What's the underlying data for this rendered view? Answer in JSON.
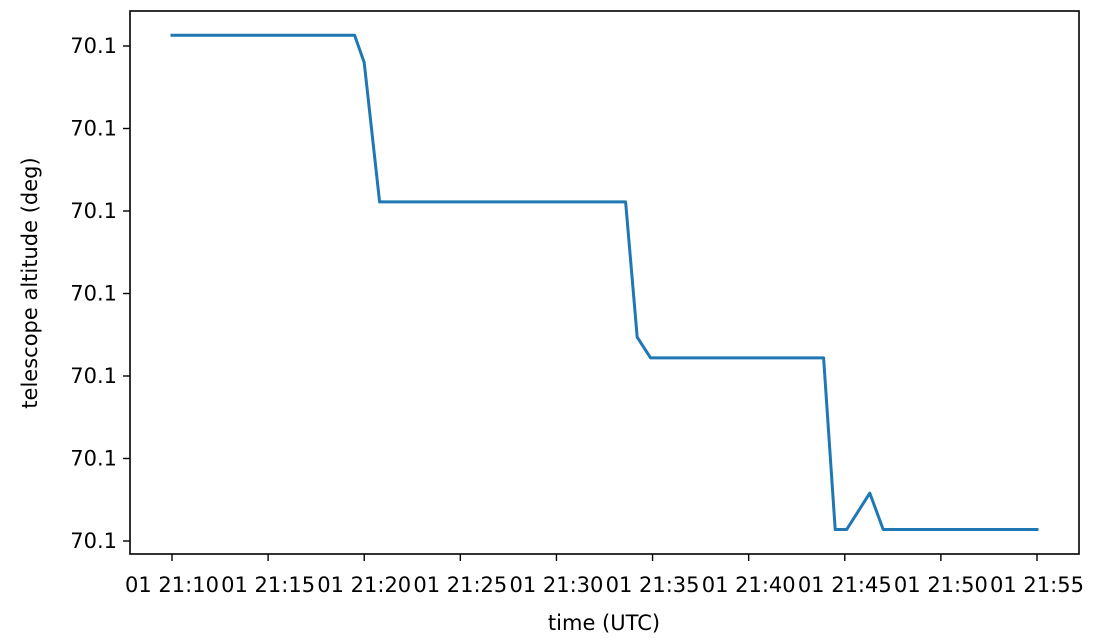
{
  "chart_data": {
    "type": "line",
    "xlabel": "time (UTC)",
    "ylabel": "telescope altitude (deg)",
    "x_ticks": [
      {
        "t": 10,
        "label": "01 21:10"
      },
      {
        "t": 15,
        "label": "01 21:15"
      },
      {
        "t": 20,
        "label": "01 21:20"
      },
      {
        "t": 25,
        "label": "01 21:25"
      },
      {
        "t": 30,
        "label": "01 21:30"
      },
      {
        "t": 35,
        "label": "01 21:35"
      },
      {
        "t": 40,
        "label": "01 21:40"
      },
      {
        "t": 45,
        "label": "01 21:45"
      },
      {
        "t": 50,
        "label": "01 21:50"
      },
      {
        "t": 55,
        "label": "01 21:55"
      }
    ],
    "y_ticks": [
      {
        "v": 6,
        "label": "70.1"
      },
      {
        "v": 5,
        "label": "70.1"
      },
      {
        "v": 4,
        "label": "70.1"
      },
      {
        "v": 3,
        "label": "70.1"
      },
      {
        "v": 2,
        "label": "70.1"
      },
      {
        "v": 1,
        "label": "70.1"
      },
      {
        "v": 0,
        "label": "70.1"
      }
    ],
    "xlim": [
      10,
      57.3
    ],
    "ylim": [
      -0.15,
      6.4
    ],
    "series": [
      {
        "color": "#1f77b4",
        "x": [
          10.0,
          19.5,
          20.0,
          20.8,
          25.0,
          30.0,
          33.6,
          34.2,
          34.9,
          40.0,
          43.9,
          44.5,
          45.1,
          46.3,
          47.0,
          50.0,
          55.0
        ],
        "y": [
          6.13,
          6.13,
          5.8,
          4.11,
          4.11,
          4.11,
          4.11,
          2.47,
          2.22,
          2.22,
          2.22,
          0.14,
          0.14,
          0.58,
          0.14,
          0.14,
          0.14
        ]
      }
    ]
  }
}
